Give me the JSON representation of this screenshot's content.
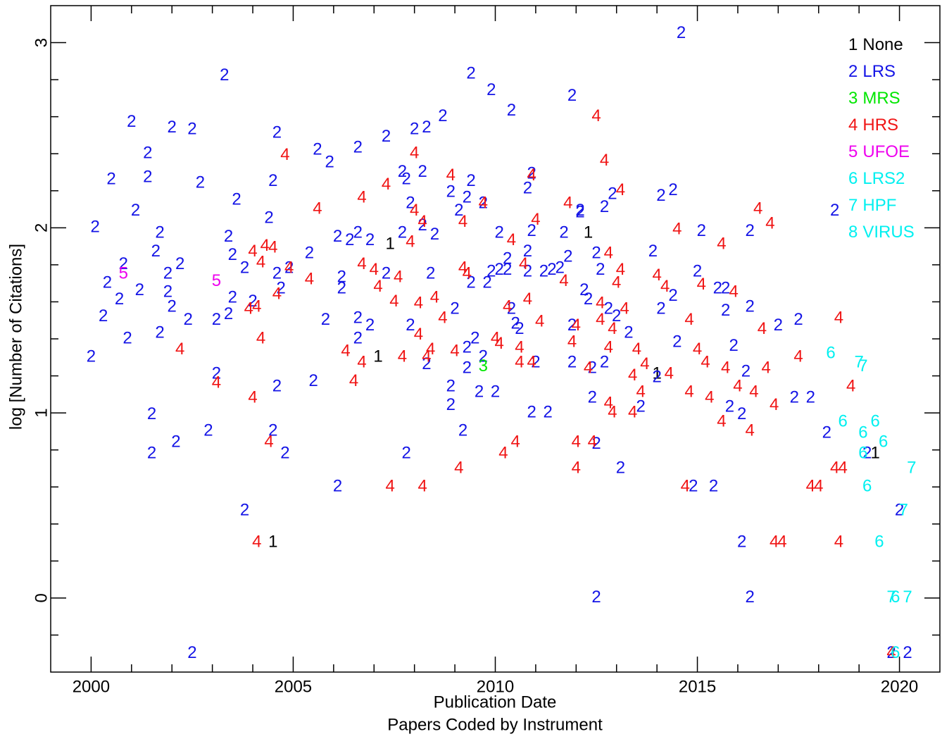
{
  "chart_data": {
    "type": "scatter",
    "xlabel": "Publication Date",
    "subtitle": "Papers Coded by Instrument",
    "ylabel": "log [Number of Citations]",
    "xlim": [
      1999.0,
      2021.0
    ],
    "ylim": [
      -0.4,
      3.2
    ],
    "xticks": [
      2000,
      2005,
      2010,
      2015,
      2020
    ],
    "yticks": [
      0,
      1,
      2,
      3
    ],
    "xminorticks": [
      2001,
      2002,
      2003,
      2004,
      2006,
      2007,
      2008,
      2009,
      2011,
      2012,
      2013,
      2014,
      2016,
      2017,
      2018,
      2019
    ],
    "yminorticks": [
      -0.2,
      0.2,
      0.4,
      0.6,
      0.8,
      1.2,
      1.4,
      1.6,
      1.8,
      2.2,
      2.4,
      2.6,
      2.8
    ],
    "legend": "top-right",
    "series": [
      {
        "symbol": "1",
        "name": "None",
        "color": "#000000",
        "x": [
          2004.5,
          2007.1,
          2007.4,
          2012.3,
          2014.0,
          2019.4
        ],
        "values": [
          0.3,
          1.3,
          1.91,
          1.97,
          1.21,
          0.78
        ]
      },
      {
        "symbol": "2",
        "name": "LRS",
        "color": "#1414e6",
        "x": [
          2000.0,
          2000.3,
          2000.4,
          2000.1,
          2000.5,
          2000.7,
          2000.8,
          2000.9,
          2001.0,
          2001.1,
          2001.2,
          2001.4,
          2001.4,
          2001.5,
          2001.5,
          2001.6,
          2001.7,
          2001.7,
          2001.9,
          2001.9,
          2002.0,
          2002.0,
          2002.1,
          2002.2,
          2002.4,
          2002.5,
          2002.5,
          2002.7,
          2002.9,
          2003.1,
          2003.1,
          2003.3,
          2003.4,
          2003.4,
          2003.5,
          2003.5,
          2003.6,
          2003.8,
          2003.8,
          2004.0,
          2004.4,
          2004.5,
          2004.5,
          2004.6,
          2004.6,
          2004.6,
          2004.7,
          2004.8,
          2004.9,
          2005.4,
          2005.5,
          2005.6,
          2005.8,
          2005.9,
          2006.1,
          2006.1,
          2006.2,
          2006.2,
          2006.4,
          2006.6,
          2006.6,
          2006.6,
          2006.6,
          2006.9,
          2006.9,
          2007.3,
          2007.3,
          2007.7,
          2007.7,
          2007.8,
          2007.8,
          2007.9,
          2007.9,
          2008.0,
          2008.2,
          2008.2,
          2008.3,
          2008.3,
          2008.4,
          2008.5,
          2008.7,
          2008.9,
          2008.9,
          2008.9,
          2009.0,
          2009.1,
          2009.2,
          2009.3,
          2009.3,
          2009.3,
          2009.4,
          2009.4,
          2009.4,
          2009.5,
          2009.6,
          2009.7,
          2009.7,
          2009.8,
          2009.9,
          2009.9,
          2010.0,
          2010.1,
          2010.1,
          2010.3,
          2010.3,
          2010.4,
          2010.4,
          2010.5,
          2010.6,
          2010.8,
          2010.8,
          2010.8,
          2010.9,
          2010.9,
          2010.9,
          2011.0,
          2011.2,
          2011.3,
          2011.4,
          2011.6,
          2011.7,
          2011.8,
          2011.9,
          2011.9,
          2011.9,
          2012.1,
          2012.1,
          2012.2,
          2012.3,
          2012.4,
          2012.4,
          2012.5,
          2012.5,
          2012.5,
          2012.6,
          2012.7,
          2012.7,
          2012.8,
          2012.9,
          2013.0,
          2013.1,
          2013.3,
          2013.6,
          2013.9,
          2014.0,
          2014.1,
          2014.1,
          2014.4,
          2014.4,
          2014.5,
          2014.6,
          2014.9,
          2015.0,
          2015.1,
          2015.4,
          2015.5,
          2015.7,
          2015.7,
          2015.8,
          2015.9,
          2016.1,
          2016.1,
          2016.2,
          2016.3,
          2016.3,
          2016.3,
          2017.0,
          2017.4,
          2017.5,
          2017.8,
          2018.2,
          2018.4,
          2020.0,
          2019.8,
          2020.2,
          2019.2
        ],
        "values": [
          1.3,
          1.52,
          1.7,
          2.0,
          2.26,
          1.61,
          1.8,
          1.4,
          2.57,
          2.09,
          1.66,
          2.27,
          2.4,
          0.99,
          0.78,
          1.87,
          1.97,
          1.43,
          1.75,
          1.65,
          1.57,
          2.54,
          0.84,
          1.8,
          1.5,
          -0.3,
          2.53,
          2.24,
          0.9,
          1.21,
          1.5,
          2.82,
          1.53,
          1.95,
          1.62,
          1.85,
          2.15,
          0.47,
          1.78,
          1.6,
          2.05,
          2.25,
          0.9,
          1.75,
          2.51,
          1.14,
          1.67,
          0.78,
          1.78,
          1.86,
          1.17,
          2.42,
          1.5,
          2.35,
          1.95,
          0.6,
          1.73,
          1.67,
          1.93,
          2.43,
          1.51,
          1.97,
          1.4,
          1.47,
          1.93,
          2.49,
          1.75,
          2.3,
          1.97,
          2.26,
          0.78,
          1.47,
          2.13,
          2.53,
          2.3,
          2.01,
          1.26,
          2.54,
          1.75,
          1.96,
          2.6,
          2.19,
          1.14,
          1.04,
          1.56,
          2.09,
          0.9,
          2.16,
          1.35,
          1.24,
          2.83,
          1.7,
          2.25,
          1.4,
          1.11,
          2.13,
          1.3,
          1.7,
          2.74,
          1.76,
          1.11,
          1.97,
          1.77,
          1.83,
          1.77,
          2.63,
          1.56,
          1.48,
          1.45,
          1.87,
          2.21,
          1.76,
          1.0,
          2.29,
          1.98,
          1.27,
          1.76,
          1.0,
          1.77,
          1.78,
          1.97,
          1.84,
          1.47,
          1.27,
          2.71,
          2.08,
          2.09,
          1.66,
          1.61,
          1.08,
          1.24,
          0.83,
          0.0,
          1.86,
          1.77,
          1.27,
          2.11,
          1.56,
          2.18,
          1.52,
          0.7,
          1.43,
          1.03,
          1.87,
          1.19,
          2.17,
          1.56,
          2.2,
          1.63,
          1.38,
          3.05,
          0.6,
          1.76,
          1.98,
          0.6,
          1.67,
          1.67,
          1.55,
          1.03,
          1.36,
          0.3,
          0.99,
          1.22,
          1.98,
          0.0,
          1.57,
          1.47,
          1.08,
          1.5,
          1.08,
          0.89,
          2.09,
          0.47,
          -0.3,
          -0.3,
          0.78
        ]
      },
      {
        "symbol": "3",
        "name": "MRS",
        "color": "#00e600",
        "x": [
          2009.7
        ],
        "values": [
          1.25
        ]
      },
      {
        "symbol": "4",
        "name": "HRS",
        "color": "#f01414",
        "x": [
          2002.2,
          2003.1,
          2004.0,
          2003.9,
          2004.1,
          2004.1,
          2004.2,
          2004.0,
          2004.2,
          2004.3,
          2004.4,
          2004.5,
          2004.6,
          2004.8,
          2004.9,
          2005.4,
          2005.6,
          2006.3,
          2006.5,
          2006.7,
          2006.7,
          2006.7,
          2007.0,
          2007.1,
          2007.3,
          2007.4,
          2007.5,
          2007.6,
          2007.7,
          2007.9,
          2008.0,
          2008.0,
          2008.1,
          2008.1,
          2008.2,
          2008.2,
          2008.3,
          2008.4,
          2008.5,
          2008.7,
          2008.9,
          2009.0,
          2009.1,
          2009.2,
          2009.2,
          2009.3,
          2009.7,
          2010.0,
          2010.1,
          2010.2,
          2010.3,
          2010.4,
          2010.5,
          2010.6,
          2010.6,
          2010.7,
          2010.8,
          2010.9,
          2010.9,
          2011.0,
          2011.1,
          2011.7,
          2011.8,
          2011.9,
          2012.0,
          2012.0,
          2012.0,
          2012.3,
          2012.4,
          2012.5,
          2012.6,
          2012.6,
          2012.8,
          2012.7,
          2012.8,
          2012.8,
          2012.9,
          2012.9,
          2013.0,
          2013.1,
          2013.1,
          2013.2,
          2013.4,
          2013.4,
          2013.5,
          2013.6,
          2013.7,
          2014.0,
          2014.2,
          2014.3,
          2014.5,
          2014.7,
          2014.8,
          2014.8,
          2015.0,
          2015.1,
          2015.2,
          2015.3,
          2015.6,
          2015.6,
          2015.7,
          2015.9,
          2016.0,
          2016.3,
          2016.4,
          2016.5,
          2016.6,
          2016.7,
          2016.8,
          2016.9,
          2016.9,
          2017.1,
          2017.5,
          2017.8,
          2018.0,
          2018.4,
          2018.6,
          2018.5,
          2018.5,
          2018.8,
          2019.8
        ],
        "values": [
          1.34,
          1.16,
          1.08,
          1.56,
          1.57,
          0.3,
          1.4,
          1.87,
          1.81,
          1.9,
          0.84,
          1.89,
          1.64,
          2.39,
          1.78,
          1.72,
          2.1,
          1.33,
          1.17,
          2.16,
          1.8,
          1.27,
          1.77,
          1.68,
          2.23,
          0.6,
          1.6,
          1.73,
          1.3,
          1.92,
          2.4,
          2.09,
          1.59,
          1.42,
          0.6,
          2.03,
          1.3,
          1.34,
          1.62,
          1.51,
          2.28,
          1.33,
          0.7,
          2.03,
          1.78,
          1.75,
          2.13,
          1.4,
          1.37,
          0.78,
          1.57,
          1.93,
          0.84,
          1.35,
          1.27,
          1.8,
          1.61,
          1.27,
          2.28,
          2.04,
          1.49,
          1.71,
          2.13,
          1.38,
          0.7,
          0.84,
          1.47,
          1.24,
          0.84,
          2.6,
          1.59,
          1.5,
          1.05,
          2.36,
          1.86,
          1.35,
          1.45,
          1.0,
          1.7,
          2.2,
          1.77,
          1.56,
          1.0,
          1.2,
          1.34,
          1.11,
          1.26,
          1.74,
          1.68,
          1.21,
          1.99,
          0.6,
          1.11,
          1.5,
          1.34,
          1.69,
          1.27,
          1.08,
          0.95,
          1.91,
          1.24,
          1.65,
          1.14,
          0.9,
          1.11,
          2.1,
          1.45,
          1.24,
          2.02,
          1.04,
          0.3,
          0.3,
          1.3,
          0.6,
          0.6,
          0.7,
          0.7,
          0.3,
          1.51,
          1.14,
          -0.3
        ]
      },
      {
        "symbol": "5",
        "name": "UFOE",
        "color": "#ee00ee",
        "x": [
          2000.8,
          2003.1
        ],
        "values": [
          1.75,
          1.71
        ]
      },
      {
        "symbol": "6",
        "name": "LRS2",
        "color": "#00f0f0",
        "x": [
          2018.3,
          2018.6,
          2019.1,
          2019.4,
          2019.6,
          2019.1,
          2019.2,
          2019.5,
          2019.9,
          2019.9
        ],
        "values": [
          1.32,
          0.95,
          0.89,
          0.95,
          0.84,
          0.78,
          0.6,
          0.3,
          0.0,
          -0.3
        ]
      },
      {
        "symbol": "7",
        "name": "HPF",
        "color": "#00f0f0",
        "x": [
          2019.0,
          2019.1,
          2020.3,
          2020.1,
          2019.8,
          2020.2
        ],
        "values": [
          1.27,
          1.25,
          0.7,
          0.47,
          0.0,
          0.0
        ]
      },
      {
        "symbol": "8",
        "name": "VIRUS",
        "color": "#00f0f0",
        "x": [],
        "values": []
      }
    ]
  }
}
